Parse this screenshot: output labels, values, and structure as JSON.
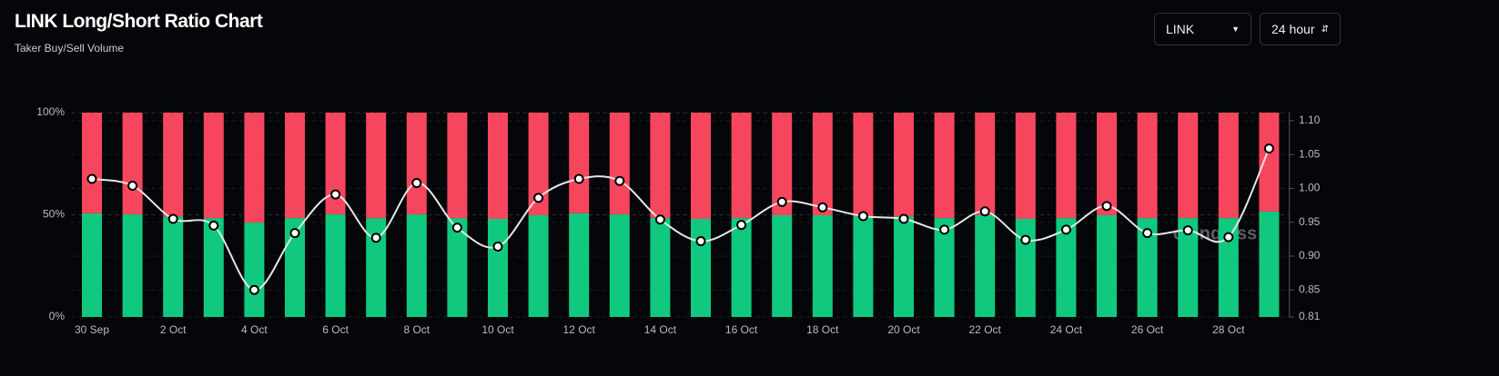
{
  "header": {
    "title": "LINK Long/Short Ratio Chart",
    "subtitle": "Taker Buy/Sell Volume",
    "symbol": "LINK",
    "interval": "24 hour"
  },
  "chart_data": {
    "type": "bar",
    "watermark": "coinglass",
    "categories": [
      "30 Sep",
      null,
      "2 Oct",
      null,
      "4 Oct",
      null,
      "6 Oct",
      null,
      "8 Oct",
      null,
      "10 Oct",
      null,
      "12 Oct",
      null,
      "14 Oct",
      null,
      "16 Oct",
      null,
      "18 Oct",
      null,
      "20 Oct",
      null,
      "22 Oct",
      null,
      "24 Oct",
      null,
      "26 Oct",
      null,
      "28 Oct",
      null
    ],
    "series": [
      {
        "color": "#10c97f",
        "values": [
          50.7,
          50.2,
          49.3,
          48.4,
          46.2,
          48.4,
          50.2,
          48.4,
          50.2,
          48.4,
          48.0,
          49.8,
          50.7,
          50.2,
          48.4,
          48.0,
          48.4,
          49.8,
          49.8,
          49.3,
          49.3,
          48.4,
          49.8,
          48.0,
          48.4,
          49.8,
          48.4,
          48.4,
          48.4,
          51.6
        ]
      },
      {
        "color": "#f6465d",
        "values": [
          49.3,
          49.8,
          50.7,
          51.6,
          53.8,
          51.6,
          49.8,
          51.6,
          49.8,
          51.6,
          52.0,
          50.2,
          49.3,
          49.8,
          51.6,
          52.0,
          51.6,
          50.2,
          50.2,
          50.7,
          50.7,
          51.6,
          50.2,
          52.0,
          51.6,
          50.2,
          51.6,
          51.6,
          51.6,
          48.4
        ]
      },
      {
        "type": "line",
        "axis": "y2",
        "color": "#e6e6e6",
        "values": [
          1.014,
          1.004,
          0.955,
          0.945,
          0.85,
          0.934,
          0.991,
          0.927,
          1.008,
          0.942,
          0.914,
          0.986,
          1.014,
          1.011,
          0.954,
          0.922,
          0.946,
          0.98,
          0.972,
          0.959,
          0.955,
          0.939,
          0.966,
          0.924,
          0.939,
          0.974,
          0.934,
          0.938,
          0.928,
          1.059
        ]
      }
    ],
    "ylim": [
      0,
      100
    ],
    "yticks": [
      {
        "value": 0,
        "label": "0%"
      },
      {
        "value": 50,
        "label": "50%"
      },
      {
        "value": 100,
        "label": "100%"
      }
    ],
    "y2lim": [
      0.81,
      1.112
    ],
    "y2ticks": [
      {
        "value": 0.81,
        "label": "0.81"
      },
      {
        "value": 0.85,
        "label": "0.85"
      },
      {
        "value": 0.9,
        "label": "0.90"
      },
      {
        "value": 0.95,
        "label": "0.95"
      },
      {
        "value": 1.0,
        "label": "1.00"
      },
      {
        "value": 1.05,
        "label": "1.05"
      },
      {
        "value": 1.1,
        "label": "1.10"
      }
    ],
    "grid": true
  }
}
